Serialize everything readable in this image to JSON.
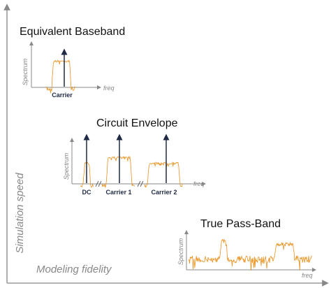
{
  "axes": {
    "y_label": "Simulation speed",
    "x_label": "Modeling fidelity"
  },
  "panels": [
    {
      "title": "Equivalent Baseband",
      "y_label": "Spectrum",
      "x_label": "freq",
      "markers": [
        "Carrier"
      ]
    },
    {
      "title": "Circuit Envelope",
      "y_label": "Spectrum",
      "x_label": "freq",
      "markers": [
        "DC",
        "Carrier 1",
        "Carrier 2"
      ]
    },
    {
      "title": "True Pass-Band",
      "y_label": "Spectrum",
      "x_label": "freq",
      "markers": []
    }
  ]
}
